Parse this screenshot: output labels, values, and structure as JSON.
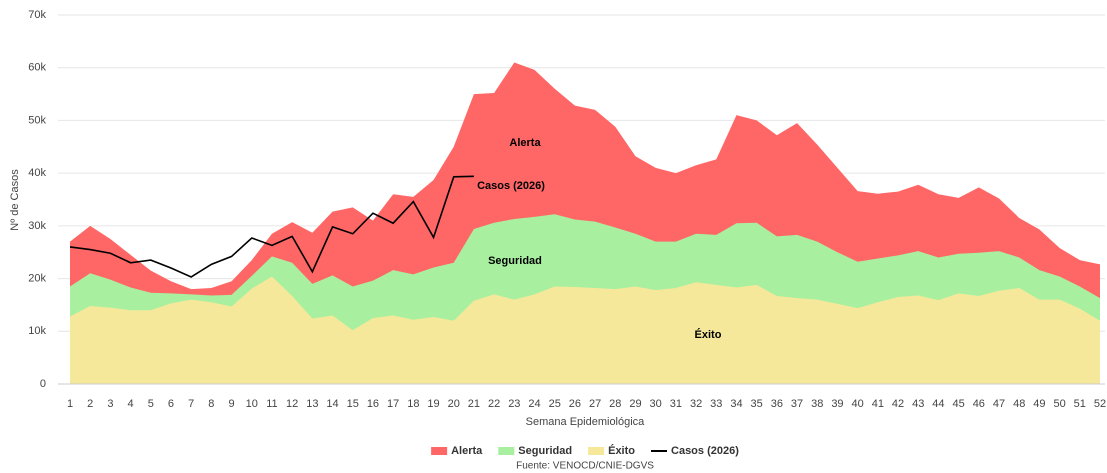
{
  "chart_data": {
    "type": "area",
    "y_label": "Nº de Casos",
    "x_label": "Semana Epidemiológica",
    "source": "Fuente: VENOCD/CNIE-DGVS",
    "annotations": [
      "Alerta",
      "Seguridad",
      "Éxito",
      "Casos (2026)"
    ],
    "categories": [
      "1",
      "2",
      "3",
      "4",
      "5",
      "6",
      "7",
      "8",
      "9",
      "10",
      "11",
      "12",
      "13",
      "14",
      "15",
      "16",
      "17",
      "18",
      "19",
      "20",
      "21",
      "22",
      "23",
      "24",
      "25",
      "26",
      "27",
      "28",
      "29",
      "30",
      "31",
      "32",
      "33",
      "34",
      "35",
      "36",
      "37",
      "38",
      "39",
      "40",
      "41",
      "42",
      "43",
      "44",
      "45",
      "46",
      "47",
      "48",
      "49",
      "50",
      "51",
      "52"
    ],
    "ylim": [
      0,
      70000
    ],
    "yticks": [
      0,
      {
        "value": 10000,
        "label": "10k"
      },
      {
        "value": 20000,
        "label": "20k"
      },
      {
        "value": 30000,
        "label": "30k"
      },
      {
        "value": 40000,
        "label": "40k"
      },
      {
        "value": 50000,
        "label": "50k"
      },
      {
        "value": 60000,
        "label": "60k"
      },
      {
        "value": 70000,
        "label": "70k"
      }
    ],
    "grid": true,
    "legend": "bottom",
    "series": [
      {
        "name": "Alerta",
        "type": "area",
        "color": "#ff6666",
        "values": [
          27000,
          30000,
          27500,
          24500,
          21500,
          19500,
          18000,
          18200,
          19500,
          23500,
          28500,
          30700,
          28700,
          32700,
          33500,
          31000,
          36000,
          35500,
          38700,
          45000,
          55000,
          55200,
          61000,
          59600,
          56000,
          52800,
          52000,
          48800,
          43200,
          41000,
          40000,
          41500,
          42600,
          51000,
          50000,
          47200,
          49500,
          45400,
          41000,
          36600,
          36100,
          36500,
          37800,
          36000,
          35300,
          37300,
          35200,
          31500,
          29300,
          25800,
          23500,
          22700
        ]
      },
      {
        "name": "Seguridad",
        "type": "area",
        "color": "#a8f0a0",
        "values": [
          18500,
          21000,
          19800,
          18300,
          17300,
          17200,
          17000,
          16800,
          16900,
          20500,
          24200,
          23000,
          19000,
          20600,
          18500,
          19600,
          21600,
          20800,
          22100,
          23000,
          29400,
          30600,
          31300,
          31700,
          32200,
          31200,
          30800,
          29700,
          28500,
          27000,
          27000,
          28500,
          28300,
          30500,
          30600,
          28000,
          28300,
          27000,
          25000,
          23200,
          23800,
          24400,
          25200,
          24000,
          24700,
          24900,
          25200,
          24000,
          21600,
          20400,
          18500,
          16300
        ]
      },
      {
        "name": "Éxito",
        "type": "area",
        "color": "#f5e89a",
        "values": [
          12800,
          14800,
          14500,
          14000,
          14000,
          15300,
          16000,
          15500,
          14700,
          18100,
          20400,
          16700,
          12400,
          13000,
          10200,
          12500,
          13000,
          12200,
          12700,
          12000,
          15800,
          17000,
          16000,
          17000,
          18500,
          18400,
          18200,
          18000,
          18500,
          17800,
          18200,
          19300,
          18800,
          18300,
          18800,
          16700,
          16300,
          16000,
          15200,
          14400,
          15500,
          16500,
          16800,
          15900,
          17200,
          16700,
          17700,
          18200,
          16000,
          16000,
          14300,
          12000
        ]
      },
      {
        "name": "Casos (2026)",
        "type": "line",
        "color": "#000000",
        "values": [
          26000,
          25500,
          24800,
          23000,
          23500,
          22000,
          20300,
          22700,
          24200,
          27700,
          26300,
          28000,
          21300,
          29800,
          28500,
          32400,
          30500,
          34600,
          27800,
          39300,
          39400,
          null,
          null,
          null,
          null,
          null,
          null,
          null,
          null,
          null,
          null,
          null,
          null,
          null,
          null,
          null,
          null,
          null,
          null,
          null,
          null,
          null,
          null,
          null,
          null,
          null,
          null,
          null,
          null,
          null,
          null,
          null
        ]
      }
    ]
  }
}
